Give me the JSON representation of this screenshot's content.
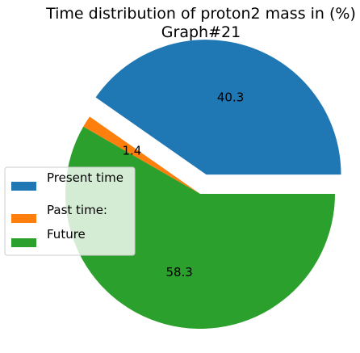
{
  "chart_data": {
    "type": "pie",
    "title": "Time distribution of proton2 mass in (%)",
    "subtitle": "Graph#21",
    "slices": [
      {
        "label": "Present time",
        "value": 40.3,
        "display": "40.3",
        "color": "#1f77b4",
        "exploded": true
      },
      {
        "label": "Past time:",
        "value": 1.4,
        "display": "1.4",
        "color": "#ff7f0e",
        "exploded": false
      },
      {
        "label": "Future",
        "value": 58.3,
        "display": "58.3",
        "color": "#2ca02c",
        "exploded": false
      }
    ],
    "start_angle_deg": 0,
    "direction": "counterclockwise",
    "legend": {
      "placement": "left",
      "entries": [
        "Present time",
        "Past time:",
        "Future"
      ]
    }
  }
}
